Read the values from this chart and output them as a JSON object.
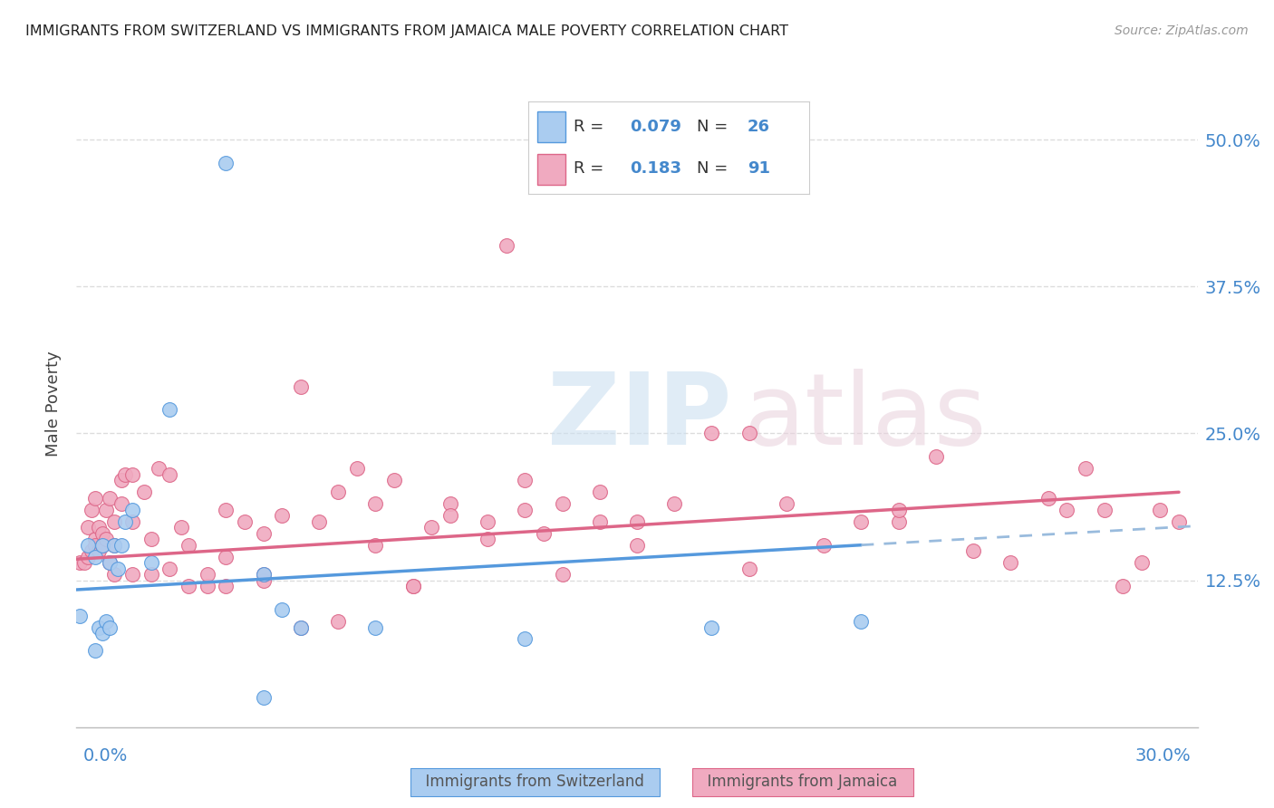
{
  "title": "IMMIGRANTS FROM SWITZERLAND VS IMMIGRANTS FROM JAMAICA MALE POVERTY CORRELATION CHART",
  "source": "Source: ZipAtlas.com",
  "ylabel": "Male Poverty",
  "ytick_labels": [
    "12.5%",
    "25.0%",
    "37.5%",
    "50.0%"
  ],
  "ytick_values": [
    0.125,
    0.25,
    0.375,
    0.5
  ],
  "xlim": [
    0.0,
    0.3
  ],
  "ylim": [
    0.0,
    0.55
  ],
  "color_swiss": "#aaccf0",
  "color_jamaica": "#f0aac0",
  "color_swiss_line": "#5599dd",
  "color_jamaica_line": "#dd6688",
  "color_swiss_dashed": "#99bbdd",
  "color_grid": "#dddddd",
  "swiss_x": [
    0.001,
    0.003,
    0.005,
    0.005,
    0.006,
    0.007,
    0.007,
    0.008,
    0.009,
    0.009,
    0.01,
    0.011,
    0.012,
    0.013,
    0.015,
    0.02,
    0.025,
    0.04,
    0.05,
    0.055,
    0.06,
    0.08,
    0.12,
    0.17,
    0.21,
    0.05
  ],
  "swiss_y": [
    0.095,
    0.155,
    0.145,
    0.065,
    0.085,
    0.08,
    0.155,
    0.09,
    0.085,
    0.14,
    0.155,
    0.135,
    0.155,
    0.175,
    0.185,
    0.14,
    0.27,
    0.48,
    0.13,
    0.1,
    0.085,
    0.085,
    0.075,
    0.085,
    0.09,
    0.025
  ],
  "jamaica_x": [
    0.001,
    0.002,
    0.003,
    0.003,
    0.004,
    0.004,
    0.005,
    0.005,
    0.005,
    0.006,
    0.006,
    0.007,
    0.007,
    0.008,
    0.008,
    0.009,
    0.009,
    0.01,
    0.01,
    0.012,
    0.012,
    0.013,
    0.015,
    0.015,
    0.018,
    0.02,
    0.022,
    0.025,
    0.028,
    0.03,
    0.03,
    0.035,
    0.04,
    0.04,
    0.045,
    0.05,
    0.05,
    0.055,
    0.06,
    0.065,
    0.07,
    0.075,
    0.08,
    0.08,
    0.085,
    0.09,
    0.095,
    0.1,
    0.1,
    0.11,
    0.11,
    0.115,
    0.12,
    0.12,
    0.125,
    0.13,
    0.14,
    0.14,
    0.15,
    0.15,
    0.16,
    0.17,
    0.18,
    0.19,
    0.2,
    0.21,
    0.22,
    0.23,
    0.24,
    0.25,
    0.26,
    0.265,
    0.27,
    0.275,
    0.28,
    0.285,
    0.29,
    0.295,
    0.22,
    0.18,
    0.13,
    0.09,
    0.07,
    0.06,
    0.05,
    0.04,
    0.035,
    0.025,
    0.02,
    0.015,
    0.01
  ],
  "jamaica_y": [
    0.14,
    0.14,
    0.145,
    0.17,
    0.185,
    0.15,
    0.16,
    0.155,
    0.195,
    0.17,
    0.15,
    0.155,
    0.165,
    0.16,
    0.185,
    0.14,
    0.195,
    0.155,
    0.175,
    0.19,
    0.21,
    0.215,
    0.175,
    0.215,
    0.2,
    0.16,
    0.22,
    0.215,
    0.17,
    0.155,
    0.12,
    0.12,
    0.185,
    0.145,
    0.175,
    0.165,
    0.125,
    0.18,
    0.29,
    0.175,
    0.2,
    0.22,
    0.19,
    0.155,
    0.21,
    0.12,
    0.17,
    0.19,
    0.18,
    0.175,
    0.16,
    0.41,
    0.185,
    0.21,
    0.165,
    0.19,
    0.175,
    0.2,
    0.175,
    0.155,
    0.19,
    0.25,
    0.25,
    0.19,
    0.155,
    0.175,
    0.175,
    0.23,
    0.15,
    0.14,
    0.195,
    0.185,
    0.22,
    0.185,
    0.12,
    0.14,
    0.185,
    0.175,
    0.185,
    0.135,
    0.13,
    0.12,
    0.09,
    0.085,
    0.13,
    0.12,
    0.13,
    0.135,
    0.13,
    0.13,
    0.13
  ],
  "background_color": "#ffffff"
}
